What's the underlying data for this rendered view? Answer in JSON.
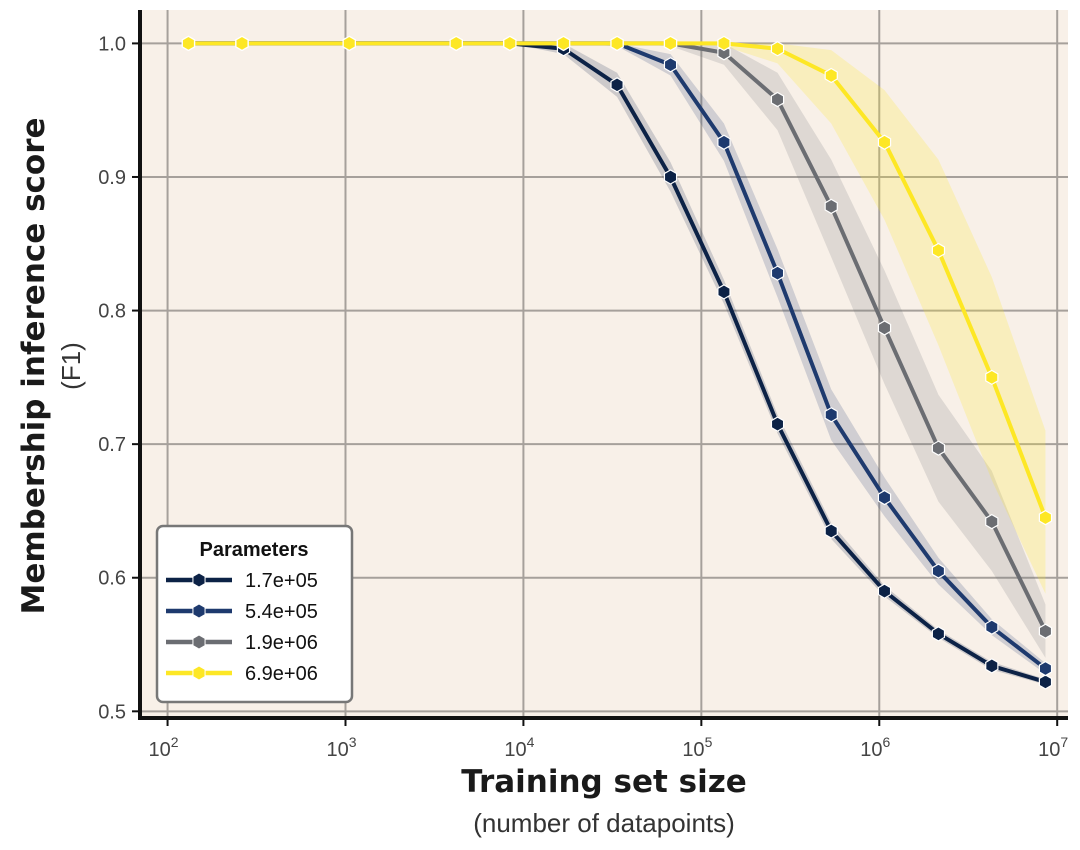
{
  "chart_data": {
    "type": "line",
    "title": "",
    "xlabel": "Training set size",
    "xlabel_sub": "(number of datapoints)",
    "ylabel": "Membership inference score",
    "ylabel_sub": "(F1)",
    "xscale": "log",
    "xlim": [
      70,
      11500000
    ],
    "ylim": [
      0.495,
      1.025
    ],
    "x_ticks": [
      {
        "base": "10",
        "exp": "2",
        "value": 100
      },
      {
        "base": "10",
        "exp": "3",
        "value": 1000
      },
      {
        "base": "10",
        "exp": "4",
        "value": 10000
      },
      {
        "base": "10",
        "exp": "5",
        "value": 100000
      },
      {
        "base": "10",
        "exp": "6",
        "value": 1000000
      },
      {
        "base": "10",
        "exp": "7",
        "value": 10000000
      }
    ],
    "y_ticks": [
      {
        "label": "0.5",
        "value": 0.5
      },
      {
        "label": "0.6",
        "value": 0.6
      },
      {
        "label": "0.7",
        "value": 0.7
      },
      {
        "label": "0.8",
        "value": 0.8
      },
      {
        "label": "0.9",
        "value": 0.9
      },
      {
        "label": "1.0",
        "value": 1.0
      }
    ],
    "grid": true,
    "background_color": "#f8f0e8",
    "legend": {
      "title": "Parameters",
      "placement": "bottom-left"
    },
    "series": [
      {
        "name": "1.7e+05",
        "color": "#0c2246",
        "x": [
          131,
          262,
          1050,
          4190,
          8390,
          16800,
          33600,
          67100,
          134000,
          268000,
          537000,
          1070000,
          2150000,
          4290000,
          8590000
        ],
        "y": [
          1.0,
          1.0,
          1.0,
          1.0,
          1.0,
          0.996,
          0.969,
          0.9,
          0.814,
          0.715,
          0.635,
          0.59,
          0.558,
          0.534,
          0.522
        ],
        "y_low": [
          1.0,
          1.0,
          1.0,
          1.0,
          1.0,
          0.992,
          0.96,
          0.889,
          0.805,
          0.708,
          0.629,
          0.586,
          0.555,
          0.531,
          0.52
        ],
        "y_high": [
          1.0,
          1.0,
          1.0,
          1.0,
          1.0,
          1.0,
          0.978,
          0.911,
          0.823,
          0.722,
          0.641,
          0.594,
          0.561,
          0.537,
          0.524
        ]
      },
      {
        "name": "5.4e+05",
        "color": "#1e3a6e",
        "x": [
          131,
          262,
          1050,
          4190,
          8390,
          16800,
          33600,
          67100,
          134000,
          268000,
          537000,
          1070000,
          2150000,
          4290000,
          8590000
        ],
        "y": [
          1.0,
          1.0,
          1.0,
          1.0,
          1.0,
          1.0,
          1.0,
          0.984,
          0.926,
          0.828,
          0.722,
          0.66,
          0.605,
          0.563,
          0.532
        ],
        "y_low": [
          1.0,
          1.0,
          1.0,
          1.0,
          1.0,
          1.0,
          0.998,
          0.976,
          0.912,
          0.81,
          0.703,
          0.646,
          0.595,
          0.557,
          0.528
        ],
        "y_high": [
          1.0,
          1.0,
          1.0,
          1.0,
          1.0,
          1.0,
          1.0,
          0.992,
          0.94,
          0.846,
          0.741,
          0.675,
          0.615,
          0.569,
          0.536
        ]
      },
      {
        "name": "1.9e+06",
        "color": "#6b6d72",
        "x": [
          131,
          262,
          1050,
          4190,
          8390,
          16800,
          33600,
          67100,
          134000,
          268000,
          537000,
          1070000,
          2150000,
          4290000,
          8590000
        ],
        "y": [
          1.0,
          1.0,
          1.0,
          1.0,
          1.0,
          1.0,
          1.0,
          1.0,
          0.993,
          0.958,
          0.878,
          0.787,
          0.697,
          0.642,
          0.56
        ],
        "y_low": [
          1.0,
          1.0,
          1.0,
          1.0,
          1.0,
          1.0,
          1.0,
          0.998,
          0.984,
          0.935,
          0.84,
          0.745,
          0.657,
          0.605,
          0.54
        ],
        "y_high": [
          1.0,
          1.0,
          1.0,
          1.0,
          1.0,
          1.0,
          1.0,
          1.0,
          1.0,
          0.978,
          0.913,
          0.83,
          0.737,
          0.68,
          0.58
        ]
      },
      {
        "name": "6.9e+06",
        "color": "#fde725",
        "x": [
          131,
          262,
          1050,
          4190,
          8390,
          16800,
          33600,
          67100,
          134000,
          268000,
          537000,
          1070000,
          2150000,
          4290000,
          8590000
        ],
        "y": [
          1.0,
          1.0,
          1.0,
          1.0,
          1.0,
          1.0,
          1.0,
          1.0,
          1.0,
          0.996,
          0.976,
          0.926,
          0.845,
          0.75,
          0.645
        ],
        "y_low": [
          1.0,
          1.0,
          1.0,
          1.0,
          1.0,
          1.0,
          1.0,
          1.0,
          0.998,
          0.985,
          0.94,
          0.868,
          0.774,
          0.673,
          0.588
        ],
        "y_high": [
          1.0,
          1.0,
          1.0,
          1.0,
          1.0,
          1.0,
          1.0,
          1.0,
          1.0,
          1.0,
          0.995,
          0.965,
          0.913,
          0.825,
          0.71
        ]
      }
    ]
  }
}
